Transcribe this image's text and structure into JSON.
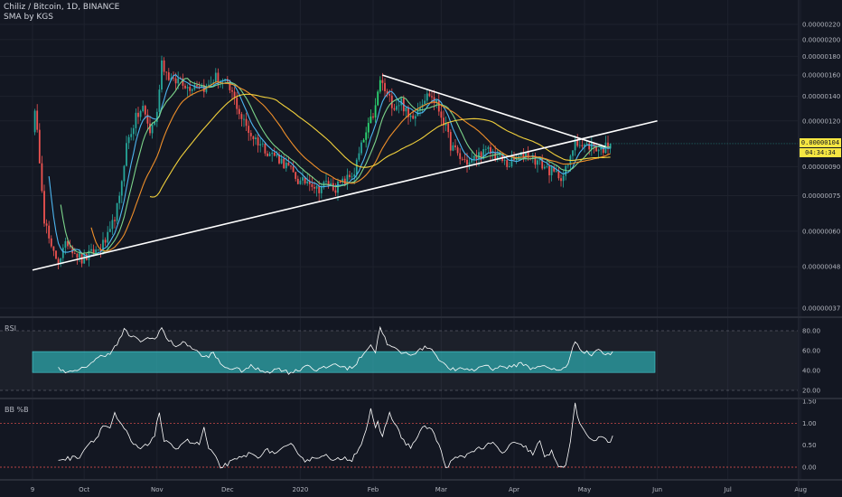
{
  "header": {
    "symbol_line": "Chiliz / Bitcoin, 1D, BINANCE",
    "indicator_line": "SMA by KGS"
  },
  "panes": {
    "rsi_label": "RSI",
    "bb_label": "BB %B"
  },
  "last_price": {
    "value": "0.00000104",
    "countdown": "04:34:34",
    "bg_color": "#f5e642",
    "text_color": "#131722"
  },
  "colors": {
    "background": "#131722",
    "up": "#26a69a",
    "up_alt": "#2bd672",
    "down": "#ef5350",
    "sma_fast": "#4db6f0",
    "sma_mid": "#7cd48a",
    "sma_slow": "#ef8f2a",
    "sma_long": "#f2d13c",
    "trendline": "#ffffff",
    "rsi_band_fill": "#26a3a8",
    "rsi_line": "#ffffff",
    "bb_line": "#ffffff",
    "bb_level_line": "#ef5350",
    "grid": "#1e222d",
    "axis_text": "#b2b5be"
  },
  "chart_data": {
    "type": "candlestick",
    "title": "Chiliz / Bitcoin, 1D, BINANCE",
    "x_axis": {
      "ticks": [
        "9",
        "Oct",
        "Nov",
        "Dec",
        "2020",
        "Feb",
        "Mar",
        "Apr",
        "May",
        "Jun",
        "Jul",
        "Aug"
      ],
      "tick_days": [
        0,
        22,
        53,
        83,
        114,
        145,
        174,
        205,
        235,
        266,
        296,
        327
      ]
    },
    "price_axis": {
      "scale": "log",
      "ticks": [
        "0.00000220",
        "0.00000200",
        "0.00000180",
        "0.00000160",
        "0.00000140",
        "0.00000120",
        "0.00000090",
        "0.00000075",
        "0.00000060",
        "0.00000048",
        "0.00000037"
      ],
      "tick_values": [
        2.2e-06,
        2e-06,
        1.8e-06,
        1.6e-06,
        1.4e-06,
        1.2e-06,
        9e-07,
        7.5e-07,
        6e-07,
        4.8e-07,
        3.7e-07
      ],
      "range": [
        3.5e-07,
        2.35e-06
      ]
    },
    "price_anchors": [
      [
        0,
        1.15e-06
      ],
      [
        1,
        1.25e-06
      ],
      [
        3,
        9.5e-07
      ],
      [
        5,
        6.5e-07
      ],
      [
        8,
        5.3e-07
      ],
      [
        11,
        5e-07
      ],
      [
        15,
        5.6e-07
      ],
      [
        18,
        5.3e-07
      ],
      [
        21,
        5e-07
      ],
      [
        25,
        5.2e-07
      ],
      [
        29,
        5.4e-07
      ],
      [
        33,
        5.9e-07
      ],
      [
        37,
        7.3e-07
      ],
      [
        40,
        1.03e-06
      ],
      [
        44,
        1.22e-06
      ],
      [
        47,
        1.3e-06
      ],
      [
        50,
        1.12e-06
      ],
      [
        53,
        1.25e-06
      ],
      [
        55,
        1.75e-06
      ],
      [
        57,
        1.62e-06
      ],
      [
        60,
        1.52e-06
      ],
      [
        63,
        1.57e-06
      ],
      [
        66,
        1.48e-06
      ],
      [
        70,
        1.52e-06
      ],
      [
        74,
        1.47e-06
      ],
      [
        78,
        1.58e-06
      ],
      [
        82,
        1.52e-06
      ],
      [
        85,
        1.42e-06
      ],
      [
        89,
        1.22e-06
      ],
      [
        93,
        1.1e-06
      ],
      [
        97,
        1.04e-06
      ],
      [
        101,
        9.8e-07
      ],
      [
        104,
        9.6e-07
      ],
      [
        107,
        9.2e-07
      ],
      [
        111,
        8.6e-07
      ],
      [
        114,
        8.1e-07
      ],
      [
        118,
        8.3e-07
      ],
      [
        121,
        7.8e-07
      ],
      [
        125,
        8.1e-07
      ],
      [
        129,
        7.9e-07
      ],
      [
        133,
        8.2e-07
      ],
      [
        137,
        8.7e-07
      ],
      [
        140,
        1.02e-06
      ],
      [
        143,
        1.15e-06
      ],
      [
        146,
        1.3e-06
      ],
      [
        148,
        1.55e-06
      ],
      [
        151,
        1.4e-06
      ],
      [
        154,
        1.32e-06
      ],
      [
        157,
        1.36e-06
      ],
      [
        160,
        1.22e-06
      ],
      [
        163,
        1.27e-06
      ],
      [
        166,
        1.37e-06
      ],
      [
        169,
        1.42e-06
      ],
      [
        172,
        1.33e-06
      ],
      [
        175,
        1.2e-06
      ],
      [
        178,
        1.03e-06
      ],
      [
        182,
        9.5e-07
      ],
      [
        186,
        9.2e-07
      ],
      [
        190,
        9.7e-07
      ],
      [
        194,
        9.9e-07
      ],
      [
        198,
        9.6e-07
      ],
      [
        202,
        9.1e-07
      ],
      [
        206,
        9.4e-07
      ],
      [
        210,
        9.8e-07
      ],
      [
        214,
        9.4e-07
      ],
      [
        218,
        9e-07
      ],
      [
        222,
        8.6e-07
      ],
      [
        226,
        8.5e-07
      ],
      [
        229,
        9.4e-07
      ],
      [
        231,
        1.08e-06
      ],
      [
        234,
        1.02e-06
      ],
      [
        238,
        1.03e-06
      ],
      [
        242,
        1e-06
      ],
      [
        246,
        1.04e-06
      ]
    ],
    "sma_series": [
      {
        "color_key": "sma_fast",
        "period": 7
      },
      {
        "color_key": "sma_mid",
        "period": 12
      },
      {
        "color_key": "sma_slow",
        "period": 25
      },
      {
        "color_key": "sma_long",
        "period": 50
      }
    ],
    "trendlines": [
      {
        "from": [
          0,
          4.7e-07
        ],
        "to": [
          266,
          1.2e-06
        ]
      },
      {
        "from": [
          149,
          1.6e-06
        ],
        "to": [
          244,
          1.02e-06
        ]
      }
    ],
    "rsi": {
      "label": "RSI",
      "ticks": [
        "80.00",
        "60.00",
        "40.00",
        "20.00"
      ],
      "tick_values": [
        80,
        60,
        40,
        20
      ],
      "range": [
        10,
        95
      ],
      "band": [
        38,
        59
      ],
      "band_days": [
        0,
        265
      ],
      "anchors": [
        [
          11,
          42
        ],
        [
          16,
          38
        ],
        [
          20,
          40
        ],
        [
          25,
          48
        ],
        [
          29,
          54
        ],
        [
          33,
          58
        ],
        [
          36,
          66
        ],
        [
          39,
          81
        ],
        [
          42,
          74
        ],
        [
          46,
          70
        ],
        [
          49,
          72
        ],
        [
          52,
          72
        ],
        [
          55,
          83
        ],
        [
          57,
          72
        ],
        [
          61,
          65
        ],
        [
          65,
          68
        ],
        [
          69,
          61
        ],
        [
          73,
          53
        ],
        [
          77,
          57
        ],
        [
          81,
          44
        ],
        [
          85,
          42
        ],
        [
          89,
          40
        ],
        [
          93,
          44
        ],
        [
          97,
          40
        ],
        [
          101,
          39
        ],
        [
          105,
          42
        ],
        [
          109,
          38
        ],
        [
          113,
          40
        ],
        [
          117,
          46
        ],
        [
          121,
          40
        ],
        [
          125,
          43
        ],
        [
          129,
          47
        ],
        [
          133,
          42
        ],
        [
          137,
          44
        ],
        [
          141,
          58
        ],
        [
          144,
          66
        ],
        [
          146,
          58
        ],
        [
          148,
          85
        ],
        [
          151,
          66
        ],
        [
          154,
          62
        ],
        [
          158,
          57
        ],
        [
          162,
          57
        ],
        [
          166,
          62
        ],
        [
          169,
          64
        ],
        [
          172,
          55
        ],
        [
          176,
          44
        ],
        [
          180,
          40
        ],
        [
          184,
          42
        ],
        [
          188,
          40
        ],
        [
          192,
          46
        ],
        [
          196,
          42
        ],
        [
          200,
          44
        ],
        [
          204,
          43
        ],
        [
          208,
          48
        ],
        [
          212,
          42
        ],
        [
          216,
          45
        ],
        [
          220,
          42
        ],
        [
          224,
          40
        ],
        [
          228,
          46
        ],
        [
          231,
          70
        ],
        [
          234,
          60
        ],
        [
          238,
          56
        ],
        [
          241,
          62
        ],
        [
          244,
          55
        ],
        [
          247,
          58
        ]
      ]
    },
    "bb": {
      "label": "BB %B",
      "ticks": [
        "1.50",
        "1.00",
        "0.50",
        "0.00"
      ],
      "tick_values": [
        1.5,
        1.0,
        0.5,
        0.0
      ],
      "range": [
        -0.15,
        1.65
      ],
      "level_lines": [
        1.0,
        0.0
      ],
      "anchors": [
        [
          11,
          0.18
        ],
        [
          16,
          0.2
        ],
        [
          20,
          0.25
        ],
        [
          24,
          0.55
        ],
        [
          27,
          0.65
        ],
        [
          30,
          0.95
        ],
        [
          33,
          0.9
        ],
        [
          35,
          1.2
        ],
        [
          37,
          1.0
        ],
        [
          40,
          0.8
        ],
        [
          43,
          0.5
        ],
        [
          46,
          0.42
        ],
        [
          49,
          0.5
        ],
        [
          52,
          0.75
        ],
        [
          54,
          1.25
        ],
        [
          56,
          0.6
        ],
        [
          59,
          0.48
        ],
        [
          62,
          0.45
        ],
        [
          65,
          0.62
        ],
        [
          68,
          0.55
        ],
        [
          71,
          0.52
        ],
        [
          73,
          0.9
        ],
        [
          75,
          0.4
        ],
        [
          77,
          0.3
        ],
        [
          80,
          0.0
        ],
        [
          84,
          0.1
        ],
        [
          88,
          0.2
        ],
        [
          92,
          0.3
        ],
        [
          96,
          0.25
        ],
        [
          100,
          0.38
        ],
        [
          104,
          0.32
        ],
        [
          107,
          0.42
        ],
        [
          110,
          0.5
        ],
        [
          113,
          0.35
        ],
        [
          116,
          0.15
        ],
        [
          120,
          0.2
        ],
        [
          124,
          0.3
        ],
        [
          128,
          0.12
        ],
        [
          132,
          0.22
        ],
        [
          136,
          0.18
        ],
        [
          140,
          0.55
        ],
        [
          142,
          0.85
        ],
        [
          144,
          1.3
        ],
        [
          146,
          0.85
        ],
        [
          147,
          1.0
        ],
        [
          149,
          0.7
        ],
        [
          152,
          1.25
        ],
        [
          155,
          0.9
        ],
        [
          158,
          0.6
        ],
        [
          161,
          0.45
        ],
        [
          164,
          0.7
        ],
        [
          167,
          0.95
        ],
        [
          170,
          0.85
        ],
        [
          173,
          0.5
        ],
        [
          176,
          0.0
        ],
        [
          180,
          0.2
        ],
        [
          184,
          0.25
        ],
        [
          188,
          0.4
        ],
        [
          192,
          0.45
        ],
        [
          196,
          0.55
        ],
        [
          200,
          0.3
        ],
        [
          204,
          0.55
        ],
        [
          207,
          0.5
        ],
        [
          210,
          0.45
        ],
        [
          213,
          0.3
        ],
        [
          216,
          0.6
        ],
        [
          218,
          0.2
        ],
        [
          221,
          0.35
        ],
        [
          224,
          0.05
        ],
        [
          227,
          0.0
        ],
        [
          229,
          0.6
        ],
        [
          231,
          1.45
        ],
        [
          233,
          0.95
        ],
        [
          236,
          0.7
        ],
        [
          239,
          0.62
        ],
        [
          242,
          0.72
        ],
        [
          245,
          0.55
        ],
        [
          247,
          0.68
        ]
      ]
    }
  }
}
